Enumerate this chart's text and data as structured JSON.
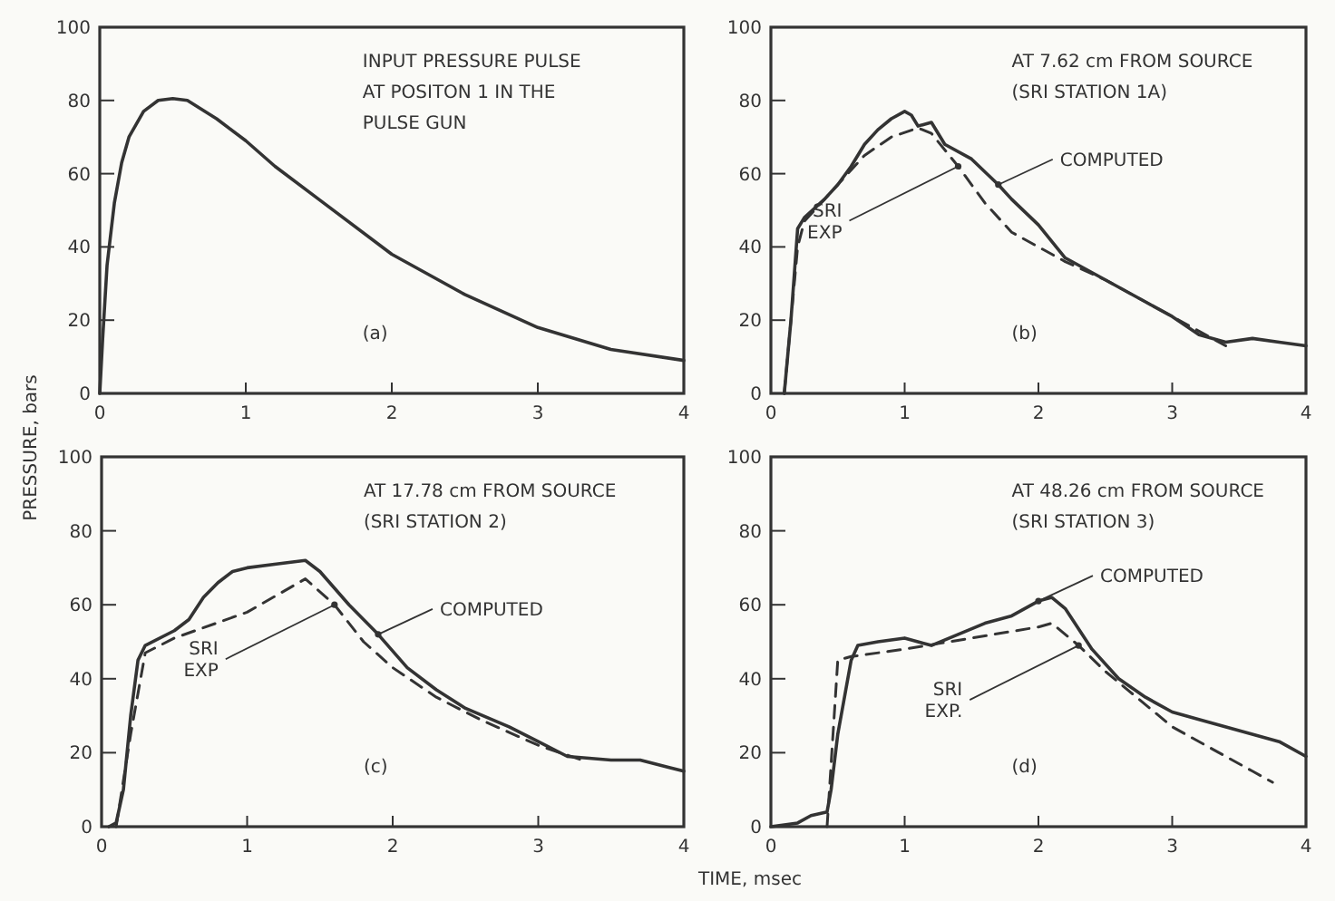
{
  "chart_data": [
    {
      "type": "line",
      "xlim": [
        0,
        4
      ],
      "ylim": [
        0,
        100
      ],
      "xticks": [
        0,
        1,
        2,
        3,
        4
      ],
      "yticks": [
        0,
        20,
        40,
        60,
        80,
        100
      ],
      "grid": false,
      "marker": "none",
      "annotations": [
        "INPUT PRESSURE PULSE",
        "AT POSITON 1 IN THE",
        "PULSE GUN",
        "(a)"
      ],
      "series": [
        {
          "color": "#333333",
          "line_style": "solid",
          "x": [
            0,
            0.02,
            0.05,
            0.1,
            0.15,
            0.2,
            0.3,
            0.4,
            0.5,
            0.6,
            0.8,
            1.0,
            1.2,
            1.5,
            2.0,
            2.5,
            3.0,
            3.5,
            4.0
          ],
          "values": [
            0,
            15,
            35,
            52,
            63,
            70,
            77,
            80,
            80.5,
            80,
            75,
            69,
            62,
            53,
            38,
            27,
            18,
            12,
            9
          ]
        }
      ]
    },
    {
      "type": "line",
      "xlim": [
        0,
        4
      ],
      "ylim": [
        0,
        100
      ],
      "xticks": [
        0,
        1,
        2,
        3,
        4
      ],
      "yticks": [
        0,
        20,
        40,
        60,
        80,
        100
      ],
      "grid": false,
      "marker": "none",
      "annotations": [
        "AT 7.62 cm FROM SOURCE",
        "(SRI STATION 1A)",
        "(b)"
      ],
      "series": [
        {
          "name": "COMPUTED",
          "color": "#333333",
          "line_style": "solid",
          "x": [
            0.1,
            0.15,
            0.2,
            0.25,
            0.4,
            0.5,
            0.6,
            0.7,
            0.8,
            0.9,
            1.0,
            1.05,
            1.1,
            1.2,
            1.3,
            1.5,
            1.7,
            1.8,
            2.0,
            2.2,
            2.5,
            2.8,
            3.0,
            3.2,
            3.4,
            3.6,
            3.8,
            4.0
          ],
          "values": [
            0,
            20,
            45,
            48,
            53,
            57,
            62,
            68,
            72,
            75,
            77,
            76,
            73,
            74,
            68,
            64,
            57,
            53,
            46,
            37,
            31,
            25,
            21,
            16,
            14,
            15,
            14,
            13
          ]
        },
        {
          "name": "SRI EXP",
          "color": "#333333",
          "line_style": "dashed",
          "x": [
            0.1,
            0.2,
            0.25,
            0.5,
            0.7,
            0.9,
            1.1,
            1.2,
            1.4,
            1.6,
            1.8,
            2.0,
            2.2,
            2.5,
            3.0,
            3.4
          ],
          "values": [
            0,
            40,
            47,
            57,
            65,
            70,
            72.5,
            71,
            62,
            52,
            44,
            40,
            36,
            31,
            21,
            13
          ]
        }
      ]
    },
    {
      "type": "line",
      "xlim": [
        0,
        4
      ],
      "ylim": [
        0,
        100
      ],
      "xticks": [
        0,
        1,
        2,
        3,
        4
      ],
      "yticks": [
        0,
        20,
        40,
        60,
        80,
        100
      ],
      "grid": false,
      "marker": "none",
      "ylabel": "PRESSURE, bars",
      "annotations": [
        "AT 17.78 cm FROM SOURCE",
        "(SRI STATION 2)",
        "(c)"
      ],
      "series": [
        {
          "name": "COMPUTED",
          "color": "#333333",
          "line_style": "solid",
          "x": [
            0.05,
            0.1,
            0.15,
            0.2,
            0.25,
            0.3,
            0.5,
            0.6,
            0.7,
            0.8,
            0.9,
            1.0,
            1.2,
            1.4,
            1.5,
            1.7,
            1.9,
            2.1,
            2.3,
            2.5,
            2.8,
            3.0,
            3.2,
            3.5,
            3.7,
            3.9,
            4.0
          ],
          "values": [
            0,
            1,
            10,
            30,
            45,
            49,
            53,
            56,
            62,
            66,
            69,
            70,
            71,
            72,
            69,
            60,
            52,
            43,
            37,
            32,
            27,
            23,
            19,
            18,
            18,
            16,
            15
          ]
        },
        {
          "name": "SRI EXP",
          "color": "#333333",
          "line_style": "dashed",
          "x": [
            0.1,
            0.2,
            0.3,
            0.5,
            1.0,
            1.4,
            1.6,
            1.8,
            2.0,
            2.3,
            2.6,
            3.0,
            3.3
          ],
          "values": [
            0,
            25,
            47,
            51,
            58,
            67,
            60,
            50,
            43,
            35,
            29,
            22,
            18
          ]
        }
      ]
    },
    {
      "type": "line",
      "xlim": [
        0,
        4
      ],
      "ylim": [
        0,
        100
      ],
      "xticks": [
        0,
        1,
        2,
        3,
        4
      ],
      "yticks": [
        0,
        20,
        40,
        60,
        80,
        100
      ],
      "grid": false,
      "marker": "none",
      "xlabel": "TIME, msec",
      "annotations": [
        "AT 48.26 cm FROM SOURCE",
        "(SRI STATION 3)",
        "(d)"
      ],
      "series": [
        {
          "name": "COMPUTED",
          "color": "#333333",
          "line_style": "solid",
          "x": [
            0,
            0.2,
            0.3,
            0.42,
            0.45,
            0.5,
            0.6,
            0.65,
            0.8,
            1.0,
            1.2,
            1.4,
            1.6,
            1.8,
            2.0,
            2.1,
            2.2,
            2.4,
            2.6,
            2.8,
            3.0,
            3.2,
            3.5,
            3.8,
            4.0
          ],
          "values": [
            0,
            1,
            3,
            4,
            10,
            25,
            45,
            49,
            50,
            51,
            49,
            52,
            55,
            57,
            61,
            62,
            59,
            48,
            40,
            35,
            31,
            29,
            26,
            23,
            19
          ]
        },
        {
          "name": "SRI EXP.",
          "color": "#333333",
          "line_style": "dashed",
          "x": [
            0.42,
            0.5,
            0.6,
            1.0,
            1.5,
            2.0,
            2.1,
            2.3,
            2.5,
            2.8,
            3.0,
            3.3,
            3.6,
            3.75
          ],
          "values": [
            0,
            45,
            46,
            48,
            51,
            54,
            55,
            49,
            42,
            33,
            27,
            21,
            15,
            12
          ]
        }
      ]
    }
  ]
}
